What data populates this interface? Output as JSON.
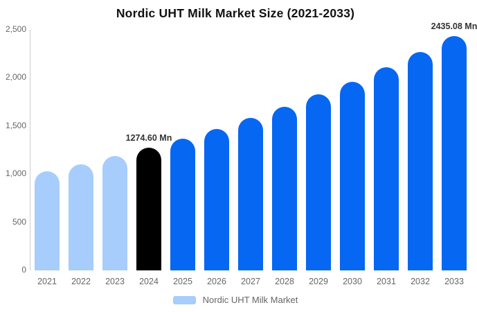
{
  "chart_data": {
    "type": "bar",
    "title": "Nordic UHT Milk Market Size (2021-2033)",
    "xlabel": "",
    "ylabel": "",
    "ylim": [
      0,
      2500
    ],
    "grid": false,
    "legend_position": "bottom",
    "legend": {
      "label": "Nordic UHT Milk Market",
      "swatch_color": "#a6cdfb"
    },
    "yticks": [
      {
        "value": 0,
        "label": "0"
      },
      {
        "value": 500,
        "label": "500"
      },
      {
        "value": 1000,
        "label": "1,000"
      },
      {
        "value": 1500,
        "label": "1,500"
      },
      {
        "value": 2000,
        "label": "2,000"
      },
      {
        "value": 2500,
        "label": "2,500"
      }
    ],
    "categories": [
      "2021",
      "2022",
      "2023",
      "2024",
      "2025",
      "2026",
      "2027",
      "2028",
      "2029",
      "2030",
      "2031",
      "2032",
      "2033"
    ],
    "points": [
      {
        "year": "2021",
        "value": 1027,
        "color": "#a6cdfb",
        "label": null
      },
      {
        "year": "2022",
        "value": 1104,
        "color": "#a6cdfb",
        "label": null
      },
      {
        "year": "2023",
        "value": 1186,
        "color": "#a6cdfb",
        "label": null
      },
      {
        "year": "2024",
        "value": 1274.6,
        "color": "#000000",
        "label": "1274.60 Mn"
      },
      {
        "year": "2025",
        "value": 1370,
        "color": "#0667f2",
        "label": null
      },
      {
        "year": "2026",
        "value": 1472,
        "color": "#0667f2",
        "label": null
      },
      {
        "year": "2027",
        "value": 1582,
        "color": "#0667f2",
        "label": null
      },
      {
        "year": "2028",
        "value": 1700,
        "color": "#0667f2",
        "label": null
      },
      {
        "year": "2029",
        "value": 1827,
        "color": "#0667f2",
        "label": null
      },
      {
        "year": "2030",
        "value": 1963,
        "color": "#0667f2",
        "label": null
      },
      {
        "year": "2031",
        "value": 2109,
        "color": "#0667f2",
        "label": null
      },
      {
        "year": "2032",
        "value": 2267,
        "color": "#0667f2",
        "label": null
      },
      {
        "year": "2033",
        "value": 2435.08,
        "color": "#0667f2",
        "label": "2435.08 Mn"
      }
    ],
    "colors": {
      "historical_bar": "#a6cdfb",
      "base_year_bar": "#000000",
      "forecast_bar": "#0667f2",
      "axis_line": "#cccccc",
      "tick_text": "#666666",
      "data_label_text": "#333333",
      "title_text": "#111111"
    }
  }
}
